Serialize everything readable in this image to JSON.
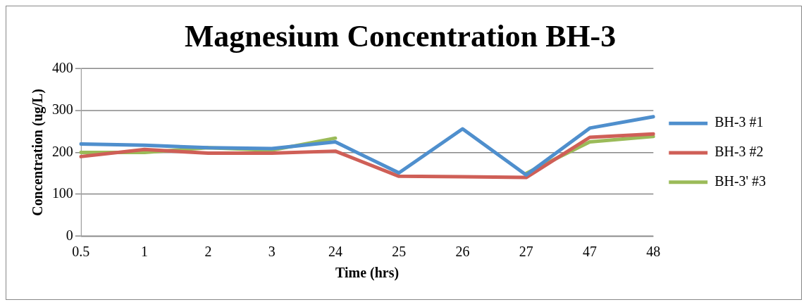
{
  "chart_data": {
    "type": "line",
    "title": "Magnesium Concentration BH-3",
    "xlabel": "Time (hrs)",
    "ylabel": "Concentration (ug/L)",
    "categories": [
      "0.5",
      "1",
      "2",
      "3",
      "24",
      "25",
      "26",
      "27",
      "47",
      "48"
    ],
    "series": [
      {
        "name": "BH-3 #1",
        "color": "#4f8fcd",
        "values": [
          220,
          217,
          211,
          209,
          225,
          151,
          256,
          146,
          258,
          285
        ]
      },
      {
        "name": "BH-3 #2",
        "color": "#cf5f57",
        "values": [
          190,
          207,
          198,
          198,
          203,
          143,
          142,
          140,
          236,
          244
        ]
      },
      {
        "name": "BH-3' #3",
        "color": "#9bbb59",
        "values": [
          200,
          200,
          211,
          205,
          234,
          null,
          null,
          150,
          225,
          238
        ]
      }
    ],
    "ylim": [
      0,
      400
    ],
    "yticks": [
      0,
      100,
      200,
      300,
      400
    ],
    "grid": "y",
    "legend": "right",
    "marker": "none",
    "line_style": "solid"
  }
}
